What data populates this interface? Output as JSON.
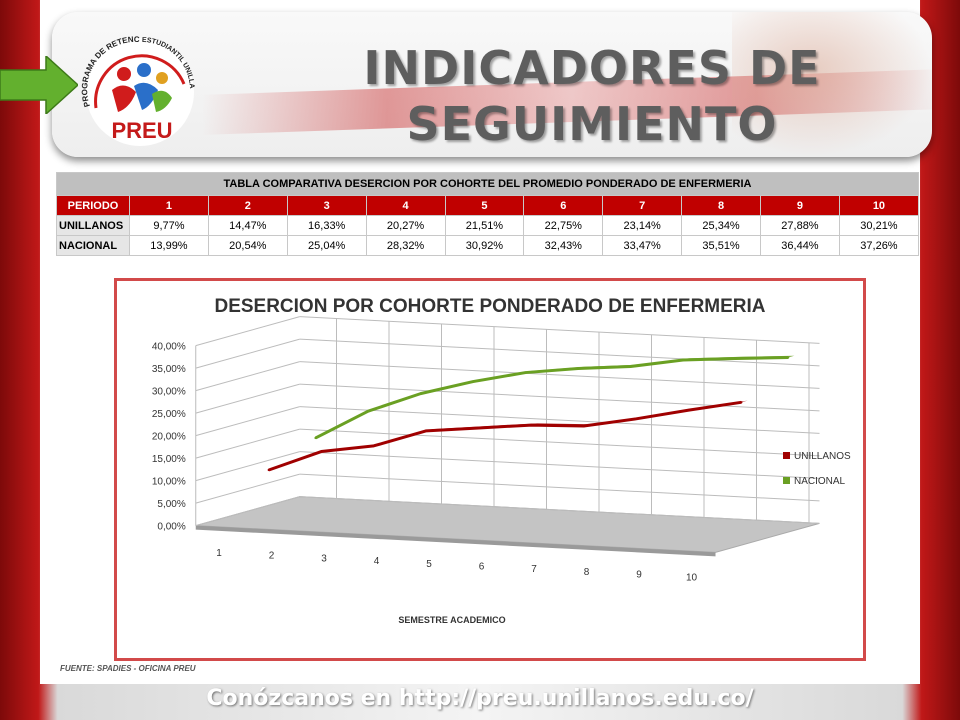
{
  "header": {
    "title_line1": "INDICADORES DE",
    "title_line2": "SEGUIMIENTO",
    "logo": {
      "arc_top": "PROGRAMA DE RETENCIÓN",
      "arc_right": "ESTUDIANTIL UNILLANISTA",
      "name": "PREU"
    }
  },
  "table": {
    "caption": "TABLA COMPARATIVA DESERCION POR COHORTE DEL PROMEDIO PONDERADO DE ENFERMERIA",
    "header": [
      "PERIODO",
      "1",
      "2",
      "3",
      "4",
      "5",
      "6",
      "7",
      "8",
      "9",
      "10"
    ],
    "rows": [
      {
        "label": "UNILLANOS",
        "values": [
          "9,77%",
          "14,47%",
          "16,33%",
          "20,27%",
          "21,51%",
          "22,75%",
          "23,14%",
          "25,34%",
          "27,88%",
          "30,21%"
        ]
      },
      {
        "label": "NACIONAL",
        "values": [
          "13,99%",
          "20,54%",
          "25,04%",
          "28,32%",
          "30,92%",
          "32,43%",
          "33,47%",
          "35,51%",
          "36,44%",
          "37,26%"
        ]
      }
    ]
  },
  "chart_data": {
    "type": "line",
    "title": "DESERCION POR COHORTE PONDERADO DE  ENFERMERIA",
    "xlabel": "SEMESTRE  ACADEMICO",
    "ylabel": "",
    "categories": [
      "1",
      "2",
      "3",
      "4",
      "5",
      "6",
      "7",
      "8",
      "9",
      "10"
    ],
    "y_ticks": [
      "0,00%",
      "5,00%",
      "10,00%",
      "15,00%",
      "20,00%",
      "25,00%",
      "30,00%",
      "35,00%",
      "40,00%"
    ],
    "ylim": [
      0,
      40
    ],
    "grid": true,
    "three_d": true,
    "legend_position": "right",
    "series": [
      {
        "name": "UNILLANOS",
        "color": "#a00000",
        "values": [
          9.77,
          14.47,
          16.33,
          20.27,
          21.51,
          22.75,
          23.14,
          25.34,
          27.88,
          30.21
        ]
      },
      {
        "name": "NACIONAL",
        "color": "#6aa023",
        "values": [
          13.99,
          20.54,
          25.04,
          28.32,
          30.92,
          32.43,
          33.47,
          35.51,
          36.44,
          37.26
        ]
      }
    ]
  },
  "source": "FUENTE: SPADIES - OFICINA PREU",
  "footer": "Conózcanos en http://preu.unillanos.edu.co/",
  "colors": {
    "accent": "#c00000",
    "frame": "#8b0d0d",
    "nacional": "#6aa023",
    "unillanos": "#a00000"
  }
}
